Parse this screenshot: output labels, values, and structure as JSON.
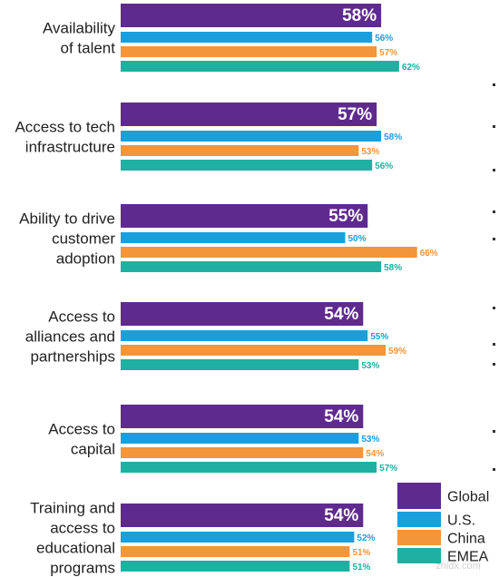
{
  "chart_data": {
    "type": "bar",
    "orientation": "horizontal",
    "title": "",
    "xlabel": "",
    "ylabel": "",
    "xlim": [
      0,
      100
    ],
    "grid": false,
    "legend_position": "bottom-right",
    "categories": [
      [
        "Availability",
        "of talent"
      ],
      [
        "Access to tech",
        "infrastructure"
      ],
      [
        "Ability to drive",
        "customer",
        "adoption"
      ],
      [
        "Access to",
        "alliances and",
        "partnerships"
      ],
      [
        "Access to",
        "capital"
      ],
      [
        "Training and",
        "access to",
        "educational",
        "programs"
      ]
    ],
    "series": [
      {
        "name": "Global",
        "color": "#5f2a8d",
        "values": [
          58,
          57,
          55,
          54,
          54,
          54
        ],
        "labels": [
          "58%",
          "57%",
          "55%",
          "54%",
          "54%",
          "54%"
        ]
      },
      {
        "name": "U.S.",
        "color": "#1a9fdc",
        "values": [
          56,
          58,
          50,
          55,
          53,
          52
        ],
        "labels": [
          "56%",
          "58%",
          "50%",
          "55%",
          "53%",
          "52%"
        ]
      },
      {
        "name": "China",
        "color": "#f2953b",
        "values": [
          57,
          53,
          66,
          59,
          54,
          51
        ],
        "labels": [
          "57%",
          "53%",
          "66%",
          "59%",
          "54%",
          "51%"
        ]
      },
      {
        "name": "EMEA",
        "color": "#1fb0a2",
        "values": [
          62,
          56,
          58,
          53,
          57,
          51
        ],
        "labels": [
          "62%",
          "56%",
          "58%",
          "53%",
          "57%",
          "51%"
        ]
      }
    ]
  },
  "legend": {
    "items": [
      {
        "label": "Global",
        "color": "#5f2a8d"
      },
      {
        "label": "U.S.",
        "color": "#1a9fdc"
      },
      {
        "label": "China",
        "color": "#f2953b"
      },
      {
        "label": "EMEA",
        "color": "#1fb0a2"
      }
    ]
  },
  "watermark": "zhidx.com"
}
